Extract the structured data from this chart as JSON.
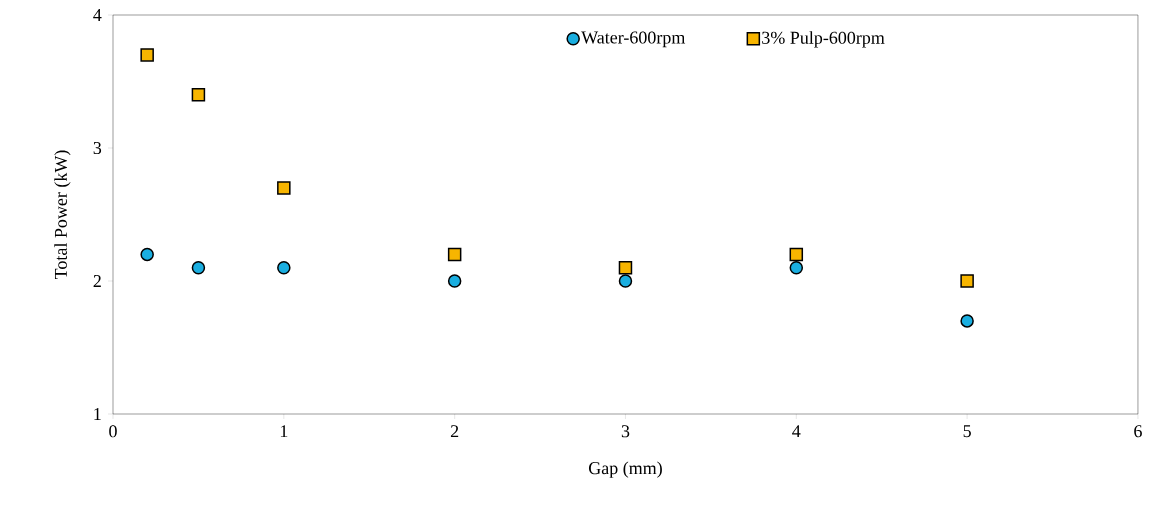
{
  "chart_data": {
    "type": "scatter",
    "xlabel": "Gap (mm)",
    "ylabel": "Total  Power (kW)",
    "x": [
      0.2,
      0.5,
      1,
      2,
      3,
      4,
      5
    ],
    "series": [
      {
        "name": "Water-600rpm",
        "color": "#1aaee0",
        "marker": "circle",
        "values": [
          2.2,
          2.1,
          2.1,
          2.0,
          2.0,
          2.1,
          1.7
        ]
      },
      {
        "name": "3% Pulp-600rpm",
        "color": "#f7b500",
        "marker": "square",
        "values": [
          3.7,
          3.4,
          2.7,
          2.2,
          2.1,
          2.2,
          2.0
        ]
      }
    ],
    "xlim": [
      0,
      6
    ],
    "ylim": [
      1,
      4
    ],
    "xticks": [
      0,
      1,
      2,
      3,
      4,
      5,
      6
    ],
    "yticks": [
      1,
      2,
      3,
      4
    ],
    "grid": false,
    "legend": "top right"
  }
}
